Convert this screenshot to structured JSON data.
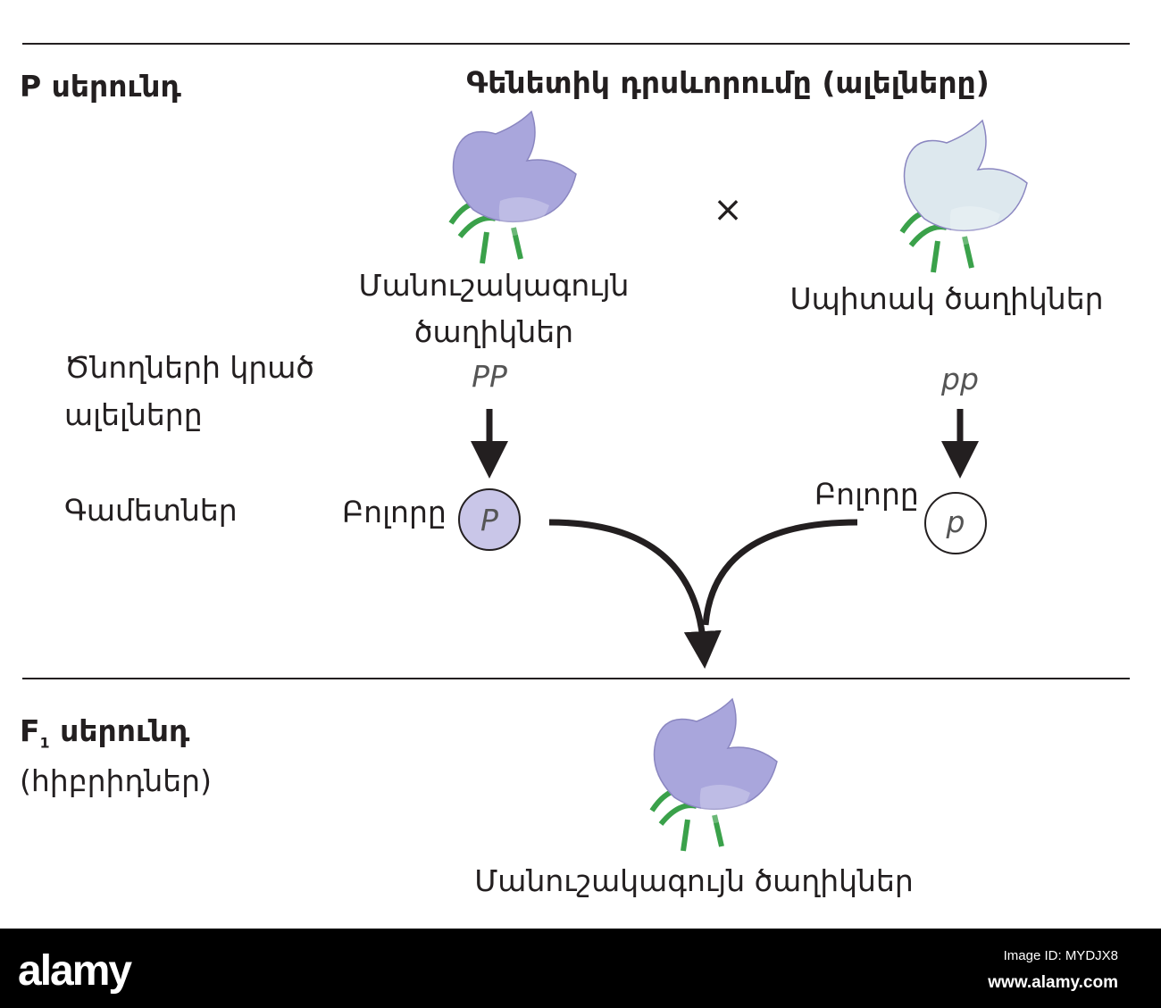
{
  "p_generation": {
    "label": "P սերունդ",
    "header": "Գենետիկ դրսևորումը (ալելները)"
  },
  "parents": [
    {
      "name_line1": "Մանուշակագույն",
      "name_line2": "ծաղիկներ",
      "alleles": "PP",
      "flower_color": "#a9a6dc"
    },
    {
      "name": "Սպիտակ ծաղիկներ",
      "alleles": "pp",
      "flower_color": "#dde8ee"
    }
  ],
  "cross_symbol": "×",
  "rows": {
    "alleles_label_line1": "Ծնողների կրած",
    "alleles_label_line2": "ալելները",
    "gametes_label": "Գամետներ"
  },
  "gametes": [
    {
      "label": "Բոլորը",
      "allele": "P",
      "fill": "#c9c6e8"
    },
    {
      "label": "Բոլորը",
      "allele": "p",
      "fill": "#ffffff"
    }
  ],
  "f1_generation": {
    "label_prefix": "F",
    "label_sub": "1",
    "label_suffix": " սերունդ",
    "sublabel": "(հիբրիդներ)",
    "result": "Մանուշակագույն ծաղիկներ"
  },
  "watermark": {
    "logo": "alamy",
    "image_id": "Image ID: MYDJX8",
    "site": "www.alamy.com"
  }
}
